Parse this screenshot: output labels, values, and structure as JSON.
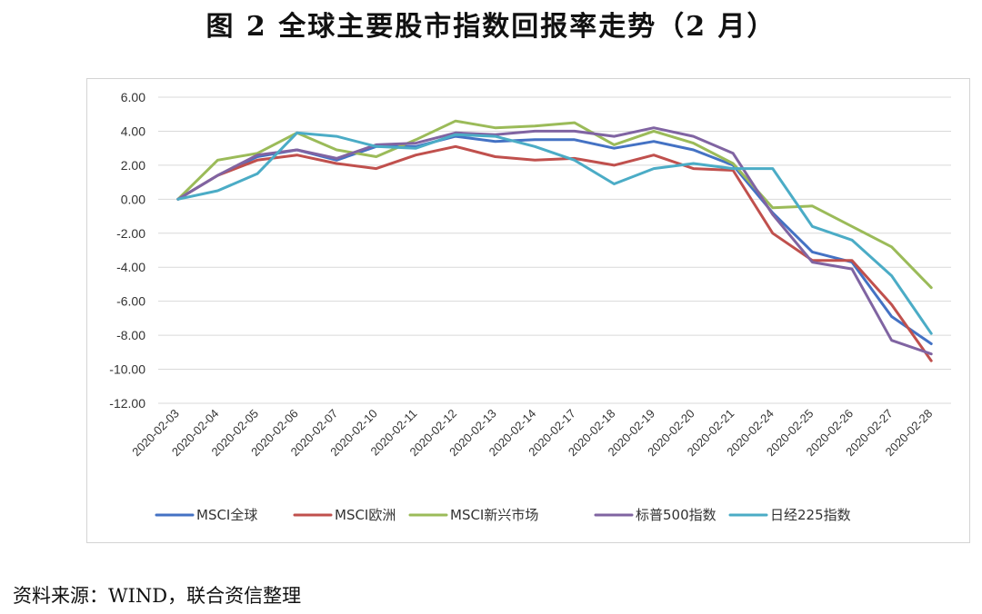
{
  "figure": {
    "title": "图 2  全球主要股市指数回报率走势（2 月）",
    "source": "资料来源：WIND，联合资信整理"
  },
  "chart_data": {
    "type": "line",
    "title": "",
    "xlabel": "",
    "ylabel": "",
    "ylim": [
      -12,
      6
    ],
    "yticks": [
      6,
      4,
      2,
      0,
      -2,
      -4,
      -6,
      -8,
      -10,
      -12
    ],
    "grid": true,
    "legend_position": "bottom",
    "x": [
      "2020-02-03",
      "2020-02-04",
      "2020-02-05",
      "2020-02-06",
      "2020-02-07",
      "2020-02-10",
      "2020-02-11",
      "2020-02-12",
      "2020-02-13",
      "2020-02-14",
      "2020-02-17",
      "2020-02-18",
      "2020-02-19",
      "2020-02-20",
      "2020-02-21",
      "2020-02-24",
      "2020-02-25",
      "2020-02-26",
      "2020-02-27",
      "2020-02-28"
    ],
    "series": [
      {
        "name": "MSCI全球",
        "color": "#4472C4",
        "values": [
          0,
          1.4,
          2.5,
          2.9,
          2.3,
          3.1,
          3.1,
          3.7,
          3.4,
          3.5,
          3.5,
          3.0,
          3.4,
          2.9,
          2.0,
          -0.8,
          -3.1,
          -3.7,
          -6.9,
          -8.5
        ]
      },
      {
        "name": "MSCI欧洲",
        "color": "#C0504D",
        "values": [
          0,
          1.4,
          2.3,
          2.6,
          2.1,
          1.8,
          2.6,
          3.1,
          2.5,
          2.3,
          2.4,
          2.0,
          2.6,
          1.8,
          1.7,
          -2.0,
          -3.6,
          -3.6,
          -6.2,
          -9.5
        ]
      },
      {
        "name": "MSCI新兴市场",
        "color": "#9BBB59",
        "values": [
          0,
          2.3,
          2.7,
          3.9,
          2.9,
          2.5,
          3.5,
          4.6,
          4.2,
          4.3,
          4.5,
          3.2,
          4.0,
          3.3,
          2.1,
          -0.5,
          -0.4,
          -1.6,
          -2.8,
          -5.2
        ]
      },
      {
        "name": "标普500指数",
        "color": "#8064A2",
        "values": [
          0,
          1.4,
          2.6,
          2.9,
          2.4,
          3.2,
          3.3,
          3.9,
          3.8,
          4.0,
          4.0,
          3.7,
          4.2,
          3.7,
          2.7,
          -0.9,
          -3.7,
          -4.1,
          -8.3,
          -9.1
        ]
      },
      {
        "name": "日经225指数",
        "color": "#4BACC6",
        "values": [
          0,
          0.5,
          1.5,
          3.9,
          3.7,
          3.1,
          3.0,
          3.8,
          3.7,
          3.1,
          2.3,
          0.9,
          1.8,
          2.1,
          1.8,
          1.8,
          -1.6,
          -2.4,
          -4.5,
          -7.9
        ]
      }
    ]
  }
}
